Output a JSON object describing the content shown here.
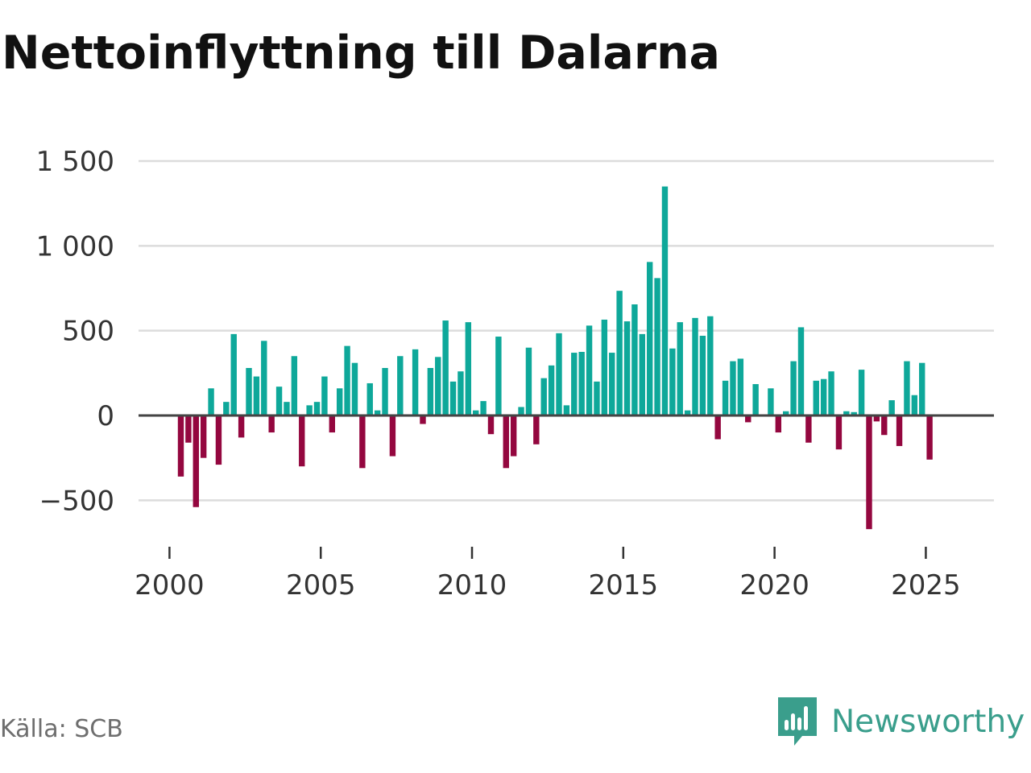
{
  "title": "Nettoinflyttning till Dalarna",
  "source": "Källa: SCB",
  "brand": {
    "name": "Newsworthy",
    "icon": "newsworthy-logo-icon"
  },
  "colors": {
    "positive": "#0ea89a",
    "negative": "#94073f",
    "gridline": "#dcdcdc",
    "baseline": "#444444",
    "brand": "#3a9e8c"
  },
  "chart_data": {
    "type": "bar",
    "title": "Nettoinflyttning till Dalarna",
    "xlabel": "",
    "ylabel": "",
    "frequency": "quarterly",
    "start": "2000 Q1",
    "ylim": [
      -700,
      1500
    ],
    "y_ticks": [
      -500,
      0,
      500,
      1000,
      1500
    ],
    "y_tick_labels": [
      "−500",
      "0",
      "500",
      "1 000",
      "1 500"
    ],
    "x_ticks": [
      2000,
      2005,
      2010,
      2015,
      2020,
      2025
    ],
    "x_tick_labels": [
      "2000",
      "2005",
      "2010",
      "2015",
      "2020",
      "2025"
    ],
    "grid": true,
    "values": [
      -360,
      -160,
      -540,
      -250,
      160,
      -290,
      80,
      480,
      -130,
      280,
      230,
      440,
      -100,
      170,
      80,
      350,
      -300,
      60,
      80,
      230,
      -100,
      160,
      410,
      310,
      -310,
      190,
      30,
      280,
      -240,
      350,
      0,
      390,
      -50,
      280,
      345,
      560,
      200,
      260,
      550,
      30,
      85,
      -110,
      465,
      -310,
      -240,
      50,
      400,
      -170,
      220,
      295,
      485,
      60,
      370,
      375,
      530,
      200,
      565,
      370,
      735,
      555,
      655,
      480,
      905,
      810,
      1350,
      395,
      550,
      30,
      575,
      470,
      585,
      -140,
      205,
      320,
      335,
      -40,
      185,
      0,
      160,
      -100,
      25,
      320,
      520,
      -160,
      205,
      215,
      260,
      -200,
      25,
      20,
      270,
      -670,
      -35,
      -115,
      90,
      -180,
      320,
      120,
      310,
      -260
    ]
  }
}
